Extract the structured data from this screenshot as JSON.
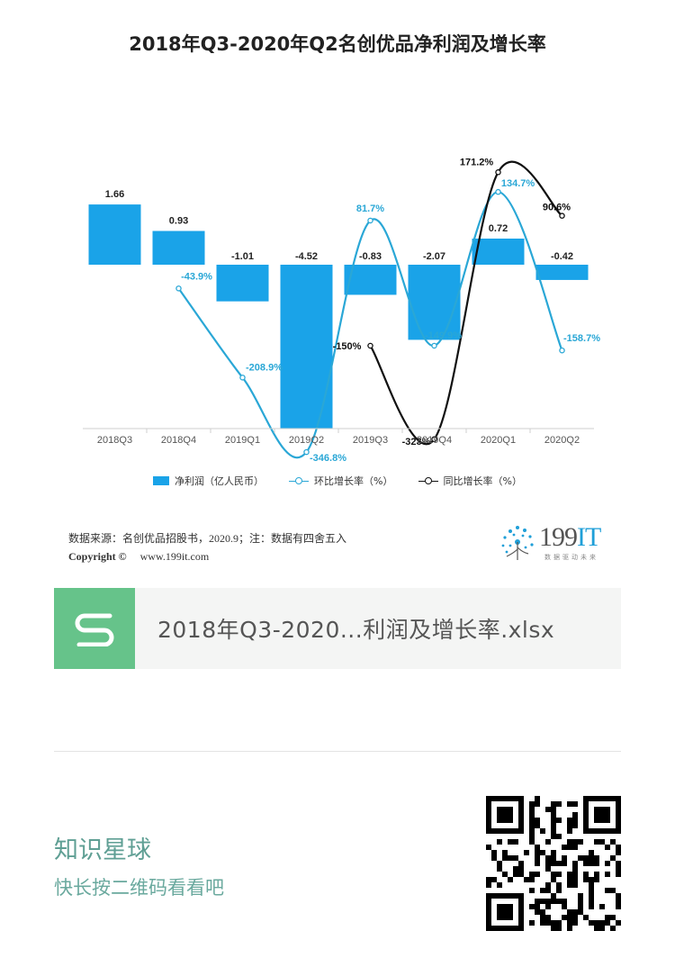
{
  "chart_data": {
    "type": "bar",
    "title": "2018年Q3-2020年Q2名创优品净利润及增长率",
    "categories": [
      "2018Q3",
      "2018Q4",
      "2019Q1",
      "2019Q2",
      "2019Q3",
      "2019Q4",
      "2020Q1",
      "2020Q2"
    ],
    "series": [
      {
        "name": "净利润（亿人民币）",
        "type": "bar",
        "color": "#1aa3e8",
        "values": [
          1.66,
          0.93,
          -1.01,
          -4.52,
          -0.83,
          -2.07,
          0.72,
          -0.42
        ],
        "labels": [
          "1.66",
          "0.93",
          "-1.01",
          "-4.52",
          "-0.83",
          "-2.07",
          "0.72",
          "-0.42"
        ]
      },
      {
        "name": "环比增长率（%）",
        "type": "line",
        "color": "#2aa7d6",
        "values": [
          null,
          -43.9,
          -208.9,
          -346.8,
          81.7,
          -149.9,
          134.7,
          -158.7
        ],
        "labels": [
          "",
          "-43.9%",
          "-208.9%",
          "-346.8%",
          "81.7%",
          "-149.9%",
          "134.7%",
          "-158.7%"
        ]
      },
      {
        "name": "同比增长率（%）",
        "type": "line",
        "color": "#111111",
        "values": [
          null,
          null,
          null,
          null,
          -150,
          -323,
          171.2,
          90.6
        ],
        "labels": [
          "",
          "",
          "",
          "",
          "-150%",
          "-323%",
          "171.2%",
          "90.6%"
        ]
      }
    ],
    "legend_position": "bottom-center",
    "grid": false
  },
  "source": {
    "line1": "数据来源：名创优品招股书，2020.9；注：数据有四舍五入",
    "copyright": "Copyright ©",
    "site": "www.199it.com"
  },
  "brand": {
    "name": "199",
    "name_accent": "IT",
    "slogan": "数据驱动未来"
  },
  "file": {
    "name": "2018年Q3-2020...利润及增长率.xlsx",
    "icon": "spreadsheet-s-icon"
  },
  "footer": {
    "title": "知识星球",
    "subtitle": "快长按二维码看看吧"
  },
  "colors": {
    "bar": "#1aa3e8",
    "qoq": "#2aa7d6",
    "yoy": "#111111",
    "file_icon": "#66c38a",
    "planet": "#5f9f94"
  }
}
